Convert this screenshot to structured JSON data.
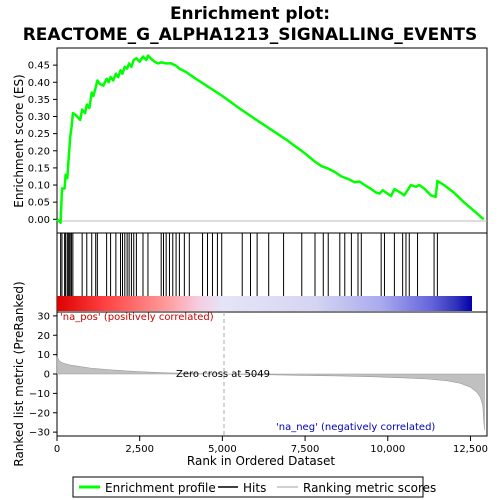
{
  "chart_data": {
    "type": "line",
    "title_line1": "Enrichment plot:",
    "title_line2": "REACTOME_G_ALPHA1213_SIGNALLING_EVENTS",
    "top_panel": {
      "ylabel": "Enrichment score (ES)",
      "ylim": [
        -0.04,
        0.5
      ],
      "yticks": [
        0.0,
        0.05,
        0.1,
        0.15,
        0.2,
        0.25,
        0.3,
        0.35,
        0.4,
        0.45
      ],
      "ytick_labels": [
        "0.00",
        "0.05",
        "0.10",
        "0.15",
        "0.20",
        "0.25",
        "0.30",
        "0.35",
        "0.40",
        "0.45"
      ],
      "line_color": "#00ff00",
      "es_curve": [
        [
          0,
          0.0
        ],
        [
          110,
          -0.01
        ],
        [
          150,
          0.09
        ],
        [
          230,
          0.09
        ],
        [
          260,
          0.13
        ],
        [
          310,
          0.12
        ],
        [
          340,
          0.16
        ],
        [
          370,
          0.2
        ],
        [
          400,
          0.24
        ],
        [
          440,
          0.27
        ],
        [
          480,
          0.31
        ],
        [
          560,
          0.305
        ],
        [
          700,
          0.29
        ],
        [
          760,
          0.32
        ],
        [
          850,
          0.31
        ],
        [
          900,
          0.335
        ],
        [
          980,
          0.325
        ],
        [
          1050,
          0.37
        ],
        [
          1100,
          0.36
        ],
        [
          1170,
          0.385
        ],
        [
          1220,
          0.405
        ],
        [
          1300,
          0.395
        ],
        [
          1400,
          0.39
        ],
        [
          1500,
          0.41
        ],
        [
          1560,
          0.4
        ],
        [
          1620,
          0.415
        ],
        [
          1700,
          0.405
        ],
        [
          1780,
          0.425
        ],
        [
          1850,
          0.415
        ],
        [
          1920,
          0.435
        ],
        [
          1980,
          0.425
        ],
        [
          2050,
          0.445
        ],
        [
          2120,
          0.44
        ],
        [
          2180,
          0.455
        ],
        [
          2250,
          0.445
        ],
        [
          2320,
          0.465
        ],
        [
          2400,
          0.47
        ],
        [
          2500,
          0.46
        ],
        [
          2600,
          0.475
        ],
        [
          2700,
          0.465
        ],
        [
          2750,
          0.478
        ],
        [
          2850,
          0.468
        ],
        [
          2950,
          0.46
        ],
        [
          3050,
          0.455
        ],
        [
          3150,
          0.458
        ],
        [
          3300,
          0.455
        ],
        [
          3450,
          0.455
        ],
        [
          3600,
          0.448
        ],
        [
          3700,
          0.44
        ],
        [
          3900,
          0.43
        ],
        [
          4200,
          0.41
        ],
        [
          4600,
          0.385
        ],
        [
          5000,
          0.36
        ],
        [
          5500,
          0.325
        ],
        [
          6000,
          0.292
        ],
        [
          6500,
          0.26
        ],
        [
          7000,
          0.228
        ],
        [
          7500,
          0.192
        ],
        [
          7800,
          0.168
        ],
        [
          8000,
          0.155
        ],
        [
          8200,
          0.148
        ],
        [
          8400,
          0.138
        ],
        [
          8600,
          0.125
        ],
        [
          8800,
          0.118
        ],
        [
          9000,
          0.108
        ],
        [
          9150,
          0.11
        ],
        [
          9300,
          0.1
        ],
        [
          9500,
          0.088
        ],
        [
          9650,
          0.078
        ],
        [
          9750,
          0.075
        ],
        [
          9850,
          0.085
        ],
        [
          9950,
          0.078
        ],
        [
          10100,
          0.068
        ],
        [
          10200,
          0.088
        ],
        [
          10350,
          0.08
        ],
        [
          10500,
          0.07
        ],
        [
          10600,
          0.085
        ],
        [
          10700,
          0.1
        ],
        [
          10850,
          0.095
        ],
        [
          10950,
          0.1
        ],
        [
          11100,
          0.09
        ],
        [
          11300,
          0.07
        ],
        [
          11450,
          0.065
        ],
        [
          11500,
          0.112
        ],
        [
          11700,
          0.1
        ],
        [
          12000,
          0.078
        ],
        [
          12300,
          0.05
        ],
        [
          12600,
          0.025
        ],
        [
          12900,
          0.0
        ]
      ]
    },
    "hits_panel": {
      "hit_color": "#000000",
      "hits": [
        110,
        150,
        230,
        260,
        310,
        340,
        370,
        400,
        440,
        480,
        760,
        900,
        1050,
        1170,
        1220,
        1500,
        1620,
        1780,
        1920,
        1980,
        2050,
        2120,
        2180,
        2250,
        2320,
        2400,
        2600,
        2750,
        3150,
        3220,
        3300,
        3400,
        3500,
        3600,
        3700,
        3850,
        4000,
        4400,
        4550,
        4700,
        4850,
        4980,
        5600,
        5850,
        6050,
        6400,
        6850,
        7400,
        7800,
        8050,
        8200,
        8550,
        8700,
        8900,
        9100,
        9200,
        9800,
        9900,
        10200,
        10450,
        10550,
        10650,
        10900,
        11400,
        11500
      ],
      "gradient_colors": [
        "#dd0000",
        "#ff9999",
        "#f5cce0",
        "#ddddf5",
        "#aaaaee",
        "#4444cc",
        "#0000aa"
      ]
    },
    "bottom_panel": {
      "ylabel": "Ranked list metric (PreRanked)",
      "xlabel": "Rank in Ordered Dataset",
      "ylim": [
        -32,
        32
      ],
      "yticks": [
        30,
        20,
        10,
        0,
        -10,
        -20,
        -30
      ],
      "ytick_labels": [
        "30",
        "20",
        "10",
        "0",
        "−10",
        "−20",
        "−30"
      ],
      "fill_color": "#c0c0c0",
      "metric_curve": [
        [
          0,
          9
        ],
        [
          80,
          6.5
        ],
        [
          200,
          5.5
        ],
        [
          400,
          4.6
        ],
        [
          700,
          3.8
        ],
        [
          1000,
          3.1
        ],
        [
          1500,
          2.3
        ],
        [
          2000,
          1.7
        ],
        [
          2500,
          1.2
        ],
        [
          3000,
          0.8
        ],
        [
          3500,
          0.5
        ],
        [
          4000,
          0.3
        ],
        [
          4500,
          0.12
        ],
        [
          5049,
          0.0
        ],
        [
          5600,
          -0.15
        ],
        [
          6500,
          -0.4
        ],
        [
          7500,
          -0.7
        ],
        [
          8500,
          -1.0
        ],
        [
          9500,
          -1.4
        ],
        [
          10500,
          -2.0
        ],
        [
          11200,
          -2.6
        ],
        [
          11800,
          -3.5
        ],
        [
          12200,
          -4.8
        ],
        [
          12500,
          -6.8
        ],
        [
          12700,
          -9.5
        ],
        [
          12800,
          -12
        ],
        [
          12870,
          -16
        ],
        [
          12920,
          -29
        ]
      ],
      "pos_label": "'na_pos' (positively correlated)",
      "neg_label": "'na_neg' (negatively correlated)",
      "zero_cross_label": "Zero cross at 5049",
      "zero_cross": 5049
    },
    "xlim": [
      0,
      13000
    ],
    "xticks": [
      0,
      2500,
      5000,
      7500,
      10000,
      12500
    ],
    "xtick_labels": [
      "0",
      "2,500",
      "5,000",
      "7,500",
      "10,000",
      "12,500"
    ],
    "legend": {
      "items": [
        {
          "label": "Enrichment profile",
          "color": "#00ff00",
          "kind": "thick-line"
        },
        {
          "label": "Hits",
          "color": "#000000",
          "kind": "thin-line"
        },
        {
          "label": "Ranking metric scores",
          "color": "#c0c0c0",
          "kind": "thin-line"
        }
      ]
    }
  }
}
